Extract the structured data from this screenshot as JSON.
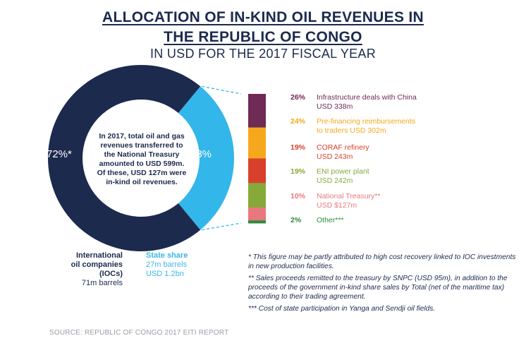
{
  "title": {
    "line1": "ALLOCATION OF IN-KIND OIL REVENUES IN",
    "line2": "THE REPUBLIC OF CONGO",
    "line3": "IN USD FOR THE 2017 FISCAL YEAR"
  },
  "colors": {
    "ioc": "#1c2a4e",
    "state": "#33b6ea",
    "connector": "#33b6ea"
  },
  "chart_data": [
    {
      "type": "pie",
      "variant": "donut",
      "slices": [
        {
          "label": "72%*",
          "value": 72,
          "color": "#1c2a4e"
        },
        {
          "label": "28%",
          "value": 28,
          "color": "#33b6ea"
        }
      ],
      "center_text": "In 2017, total oil and gas revenues transferred to the National Treasury amounted to USD 599m. Of these, USD 127m were in-kind oil revenues.",
      "legend": [
        {
          "lines": [
            "International",
            "oil companies (IOCs)",
            "71m barrels"
          ]
        },
        {
          "lines": [
            "State share",
            "27m barrels",
            "USD 1.2bn"
          ]
        }
      ]
    },
    {
      "type": "bar",
      "variant": "stacked-100",
      "segments": [
        {
          "pct_label": "26%",
          "value": 26,
          "label_lines": [
            "Infrastructure deals with China",
            "USD 338m"
          ],
          "color": "#6f2a55"
        },
        {
          "pct_label": "24%",
          "value": 24,
          "label_lines": [
            "Pre-financing reimbursements",
            "to traders USD 302m"
          ],
          "color": "#f5a81c"
        },
        {
          "pct_label": "19%",
          "value": 19,
          "label_lines": [
            "CORAF refinery",
            "USD 243m"
          ],
          "color": "#d9402c"
        },
        {
          "pct_label": "19%",
          "value": 19,
          "label_lines": [
            "ENI power plant",
            "USD 242m"
          ],
          "color": "#86a93a"
        },
        {
          "pct_label": "10%",
          "value": 10,
          "label_lines": [
            "National Treasury**",
            "USD $127m"
          ],
          "color": "#e8787e"
        },
        {
          "pct_label": "2%",
          "value": 2,
          "label_lines": [
            "Other***"
          ],
          "color": "#2e8b3c"
        }
      ]
    }
  ],
  "notes": [
    "* This figure may be partly attributed to high cost recovery linked to IOC investments in new production facilities.",
    "** Sales proceeds remitted to the treasury by SNPC (USD 95m), in addition to the proceeds of the government in-kind share sales by Total (net of the maritime tax) according to their trading agreement.",
    "*** Cost of state participation in Yanga and Sendji oil fields."
  ],
  "source": "SOURCE: REPUBLIC OF CONGO 2017 EITI REPORT"
}
